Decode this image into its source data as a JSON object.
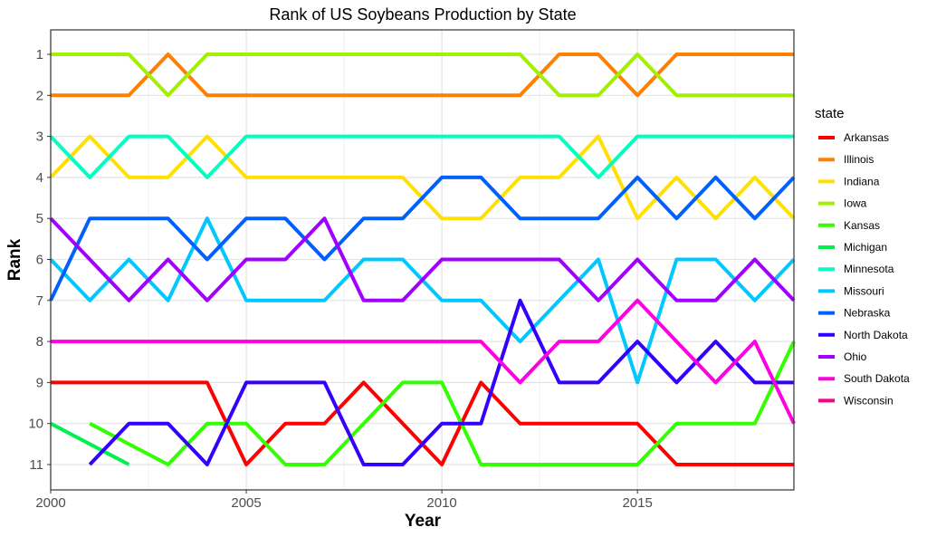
{
  "chart_data": {
    "type": "line",
    "title": "Rank of US Soybeans Production by State",
    "xlabel": "Year",
    "ylabel": "Rank",
    "xlim": [
      2000,
      2019
    ],
    "ylim": [
      11,
      1
    ],
    "y_reversed": true,
    "x_ticks": [
      2000,
      2005,
      2010,
      2015
    ],
    "y_ticks": [
      1,
      2,
      3,
      4,
      5,
      6,
      7,
      8,
      9,
      10,
      11
    ],
    "grid": true,
    "legend_title": "state",
    "legend_position": "right",
    "x": [
      2000,
      2001,
      2002,
      2003,
      2004,
      2005,
      2006,
      2007,
      2008,
      2009,
      2010,
      2011,
      2012,
      2013,
      2014,
      2015,
      2016,
      2017,
      2018,
      2019
    ],
    "series": [
      {
        "name": "Arkansas",
        "color": "#ff0000",
        "values": [
          9,
          9,
          9,
          9,
          9,
          11,
          10,
          10,
          9,
          10,
          11,
          9,
          10,
          10,
          10,
          10,
          11,
          11,
          11,
          11
        ]
      },
      {
        "name": "Illinois",
        "color": "#ff8000",
        "values": [
          2,
          2,
          2,
          1,
          2,
          2,
          2,
          2,
          2,
          2,
          2,
          2,
          2,
          1,
          1,
          2,
          1,
          1,
          1,
          1
        ]
      },
      {
        "name": "Indiana",
        "color": "#ffe000",
        "values": [
          4,
          3,
          4,
          4,
          3,
          4,
          4,
          4,
          4,
          4,
          5,
          5,
          4,
          4,
          3,
          5,
          4,
          5,
          4,
          5
        ]
      },
      {
        "name": "Iowa",
        "color": "#a0f000",
        "values": [
          1,
          1,
          1,
          2,
          1,
          1,
          1,
          1,
          1,
          1,
          1,
          1,
          1,
          2,
          2,
          1,
          2,
          2,
          2,
          2
        ]
      },
      {
        "name": "Kansas",
        "color": "#33ff00",
        "values": [
          null,
          10,
          10.5,
          11,
          10,
          10,
          11,
          11,
          10,
          9,
          9,
          11,
          11,
          11,
          11,
          11,
          10,
          10,
          10,
          8
        ]
      },
      {
        "name": "Michigan",
        "color": "#00f050",
        "values": [
          10,
          10.5,
          11,
          null,
          null,
          null,
          null,
          null,
          null,
          null,
          null,
          null,
          null,
          null,
          null,
          null,
          null,
          null,
          null,
          null
        ]
      },
      {
        "name": "Minnesota",
        "color": "#00ffc0",
        "values": [
          3,
          4,
          3,
          3,
          4,
          3,
          3,
          3,
          3,
          3,
          3,
          3,
          3,
          3,
          4,
          3,
          3,
          3,
          3,
          3
        ]
      },
      {
        "name": "Missouri",
        "color": "#00c8ff",
        "values": [
          6,
          7,
          6,
          7,
          5,
          7,
          7,
          7,
          6,
          6,
          7,
          7,
          8,
          7,
          6,
          9,
          6,
          6,
          7,
          6
        ]
      },
      {
        "name": "Nebraska",
        "color": "#0060ff",
        "values": [
          7,
          5,
          5,
          5,
          6,
          5,
          5,
          6,
          5,
          5,
          4,
          4,
          5,
          5,
          5,
          4,
          5,
          4,
          5,
          4
        ]
      },
      {
        "name": "North Dakota",
        "color": "#3300ff",
        "values": [
          null,
          11,
          10,
          10,
          11,
          9,
          9,
          9,
          11,
          11,
          10,
          10,
          7,
          9,
          9,
          8,
          9,
          8,
          9,
          9
        ]
      },
      {
        "name": "Ohio",
        "color": "#a000ff",
        "values": [
          5,
          6,
          7,
          6,
          7,
          6,
          6,
          5,
          7,
          7,
          6,
          6,
          6,
          6,
          7,
          6,
          7,
          7,
          6,
          7
        ]
      },
      {
        "name": "South Dakota",
        "color": "#ff00e0",
        "values": [
          8,
          8,
          8,
          8,
          8,
          8,
          8,
          8,
          8,
          8,
          8,
          8,
          9,
          8,
          8,
          7,
          8,
          9,
          8,
          10
        ]
      },
      {
        "name": "Wisconsin",
        "color": "#ff0080",
        "values": [
          null,
          null,
          null,
          null,
          null,
          null,
          null,
          null,
          null,
          null,
          null,
          null,
          null,
          null,
          null,
          null,
          null,
          null,
          null,
          null
        ]
      }
    ]
  }
}
